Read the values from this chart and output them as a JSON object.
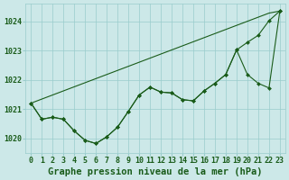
{
  "background_color": "#cce8e8",
  "grid_color": "#99cccc",
  "line_color": "#1a5c1a",
  "xlabel": "Graphe pression niveau de la mer (hPa)",
  "ylim": [
    1019.5,
    1024.6
  ],
  "yticks": [
    1020,
    1021,
    1022,
    1023,
    1024
  ],
  "tick_fontsize": 6.0,
  "xlabel_fontsize": 7.5,
  "series_straight": [
    1021.2,
    1021.34,
    1021.48,
    1021.62,
    1021.76,
    1021.9,
    1022.04,
    1022.18,
    1022.32,
    1022.46,
    1022.6,
    1022.74,
    1022.88,
    1023.02,
    1023.16,
    1023.3,
    1023.44,
    1023.58,
    1023.72,
    1023.86,
    1024.0,
    1024.14,
    1024.28,
    1024.35
  ],
  "series_main": [
    1021.2,
    1020.65,
    1020.72,
    1020.65,
    1020.25,
    1019.93,
    1019.82,
    1020.05,
    1020.38,
    1020.92,
    1021.48,
    1021.75,
    1021.58,
    1021.55,
    1021.32,
    1021.28,
    1021.62,
    1021.88,
    1022.18,
    1023.02,
    1023.28,
    1023.52,
    1024.02,
    1024.35
  ],
  "series_alt": [
    1021.2,
    1020.65,
    1020.72,
    1020.65,
    1020.25,
    1019.93,
    1019.82,
    1020.05,
    1020.38,
    1020.92,
    1021.48,
    1021.75,
    1021.58,
    1021.55,
    1021.32,
    1021.28,
    1021.62,
    1021.88,
    1022.18,
    1023.02,
    1022.18,
    1021.88,
    1021.72,
    1024.35
  ]
}
